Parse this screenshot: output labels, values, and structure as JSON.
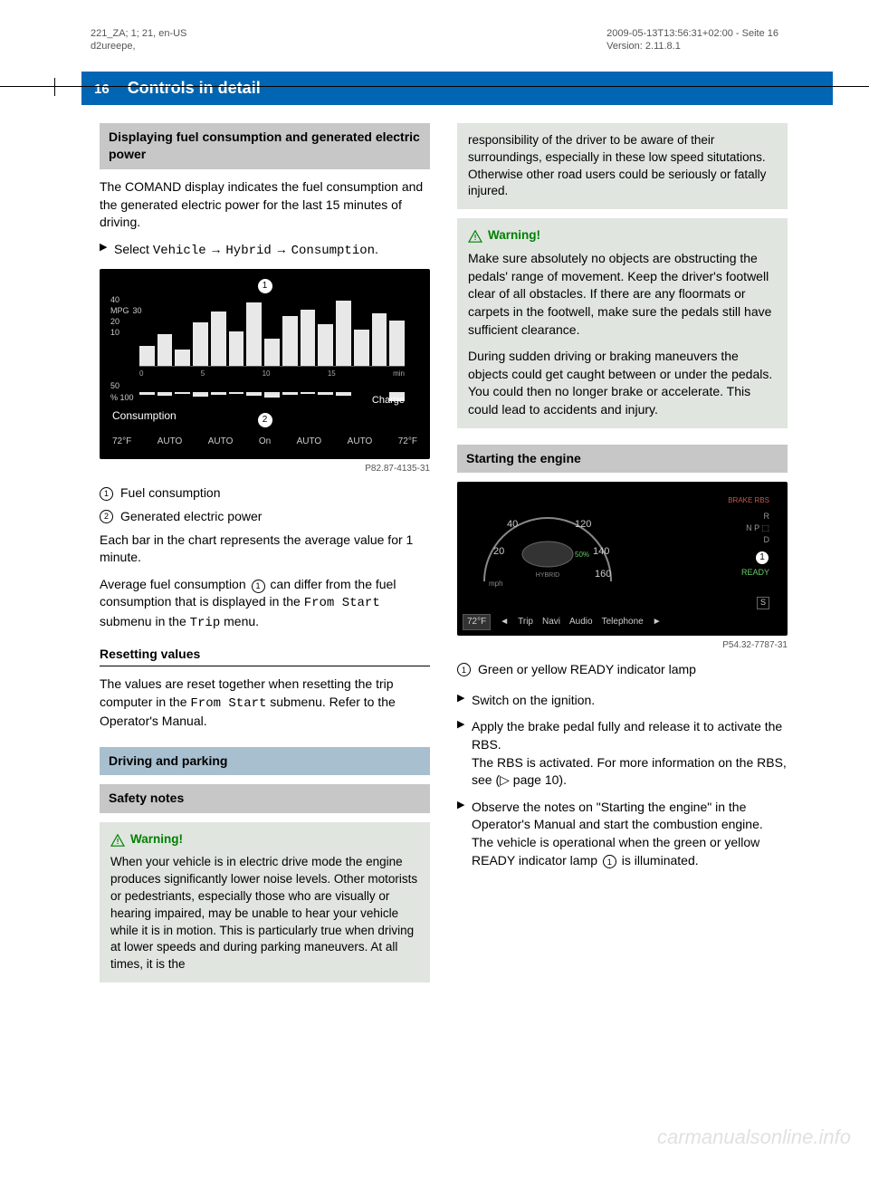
{
  "meta": {
    "left1": "221_ZA; 1; 21, en-US",
    "left2": "d2ureepe,",
    "right1": "2009-05-13T13:56:31+02:00 - Seite 16",
    "right2": "Version: 2.11.8.1"
  },
  "header": {
    "page_num": "16",
    "title": "Controls in detail"
  },
  "left_col": {
    "h1": "Displaying fuel consumption and generated electric power",
    "p1": "The COMAND display indicates the fuel consumption and the generated electric power for the last 15 minutes of driving.",
    "step1_pre": "Select ",
    "step1_mono1": "Vehicle",
    "step1_arrow": " → ",
    "step1_mono2": "Hybrid",
    "step1_mono3": "Consumption",
    "step1_dot": ".",
    "fig1": {
      "caption": "P82.87-4135-31",
      "y_unit": "MPG",
      "y_ticks": [
        "40",
        "30",
        "20",
        "10"
      ],
      "x_ticks": [
        "0",
        "5",
        "10",
        "15",
        "min"
      ],
      "charge_ticks": [
        "50",
        "% 100"
      ],
      "label_left": "Consumption",
      "label_right": "Charge",
      "footer_l": "72°F",
      "footer_items": [
        "AUTO",
        "AUTO",
        "On",
        "AUTO",
        "AUTO"
      ],
      "footer_r": "72°F",
      "bars": [
        22,
        35,
        18,
        48,
        60,
        38,
        70,
        30,
        55,
        62,
        46,
        72,
        40,
        58,
        50
      ],
      "charge_bars": [
        2,
        3,
        1,
        4,
        2,
        1,
        3,
        5,
        2,
        1,
        2,
        3,
        0,
        0,
        8
      ],
      "callout1": "1",
      "callout2": "2"
    },
    "legend1": "Fuel consumption",
    "legend2": "Generated electric power",
    "p2": "Each bar in the chart represents the average value for 1 minute.",
    "p3a": "Average fuel consumption ",
    "p3b": " can differ from the fuel consumption that is displayed in the ",
    "p3_mono1": "From Start",
    "p3c": " submenu in the ",
    "p3_mono2": "Trip",
    "p3d": " menu.",
    "h2": "Resetting values",
    "p4a": "The values are reset together when resetting the trip computer in the ",
    "p4_mono": "From Start",
    "p4b": " submenu. Refer to the Operator's Manual.",
    "h3": "Driving and parking",
    "h4": "Safety notes",
    "warn1_head": "Warning!",
    "warn1_body": "When your vehicle is in electric drive mode the engine produces significantly lower noise levels. Other motorists or pedestriants, especially those who are visually or hearing impaired, may be unable to hear your vehicle while it is in motion. This is particularly true when driving at lower speeds and during parking maneuvers. At all times, it is the"
  },
  "right_col": {
    "warn1_cont": "responsibility of the driver to be aware of their surroundings, especially in these low speed situtations. Otherwise other road users could be seriously or fatally injured.",
    "warn2_head": "Warning!",
    "warn2_p1": "Make sure absolutely no objects are obstructing the pedals' range of movement. Keep the driver's footwell clear of all obstacles. If there are any floormats or carpets in the footwell, make sure the pedals still have sufficient clearance.",
    "warn2_p2": "During sudden driving or braking maneuvers the objects could get caught between or under the pedals. You could then no longer brake or accelerate. This could lead to accidents and injury.",
    "h5": "Starting the engine",
    "fig2": {
      "caption": "P54.32-7787-31",
      "speed_ticks": [
        "20",
        "40",
        "120",
        "140",
        "160"
      ],
      "unit": "mph",
      "percent": "50%",
      "hybrid": "HYBRID",
      "ready": "READY",
      "brake": "BRAKE RBS",
      "gears": [
        "R",
        "N",
        "P",
        "D"
      ],
      "s_badge": "S",
      "temp": "72°F",
      "menu": [
        "Trip",
        "Navi",
        "Audio",
        "Telephone"
      ],
      "callout1": "1"
    },
    "legend3": "Green or yellow READY indicator lamp",
    "step2": "Switch on the ignition.",
    "step3a": "Apply the brake pedal fully and release it to activate the RBS.",
    "step3b_a": "The RBS is activated. For more information on the RBS, see (",
    "step3b_b": " page 10).",
    "step4a": "Observe the notes on \"Starting the engine\" in the Operator's Manual and start the combustion engine.",
    "step4b_a": "The vehicle is operational when the green or yellow READY indicator lamp ",
    "step4b_b": " is illuminated."
  },
  "watermark": "carmanualsonline.info",
  "colors": {
    "header_bg": "#0066b3",
    "grey_box": "#c7c7c7",
    "blue_box": "#a8bfd0",
    "warn_bg": "#e0e5e0",
    "warn_green": "#008000"
  }
}
